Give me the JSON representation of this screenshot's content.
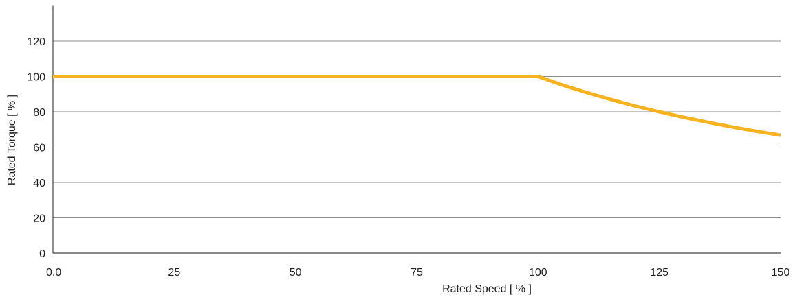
{
  "chart_data": {
    "type": "line",
    "title": "",
    "xlabel": "Rated Speed [ % ]",
    "ylabel": "Rated Torque [ % ]",
    "xlim": [
      0,
      150
    ],
    "ylim": [
      0,
      140
    ],
    "x_ticks": [
      0,
      25,
      50,
      75,
      100,
      125,
      150
    ],
    "x_tick_labels": [
      "0.0",
      "25",
      "50",
      "75",
      "100",
      "125",
      "150"
    ],
    "y_ticks": [
      0,
      20,
      40,
      60,
      80,
      100,
      120
    ],
    "y_tick_labels": [
      "0",
      "20",
      "40",
      "60",
      "80",
      "100",
      "120"
    ],
    "grid": "horizontal",
    "legend": "none",
    "series": [
      {
        "color": "#f7b220",
        "x": [
          0,
          100,
          105,
          110,
          115,
          120,
          125,
          130,
          135,
          140,
          145,
          150
        ],
        "y": [
          100,
          100,
          95.2,
          90.9,
          87.0,
          83.3,
          80.0,
          76.9,
          74.1,
          71.4,
          69.0,
          66.7
        ]
      }
    ]
  }
}
